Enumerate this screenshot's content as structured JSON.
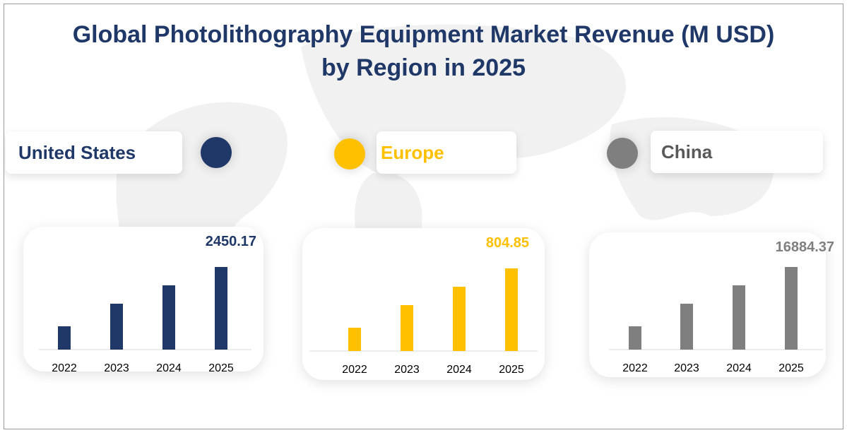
{
  "title_line1": "Global Photolithography Equipment Market Revenue  (M USD)",
  "title_line2": "by Region in 2025",
  "chart_data": [
    {
      "type": "bar",
      "region": "United States",
      "color": "#1f3868",
      "categories": [
        "2022",
        "2023",
        "2024",
        "2025"
      ],
      "values": [
        691,
        1361,
        1906,
        2450.17
      ],
      "label": "2450.17"
    },
    {
      "type": "bar",
      "region": "Europe",
      "color": "#ffc000",
      "categories": [
        "2022",
        "2023",
        "2024",
        "2025"
      ],
      "values": [
        227,
        447,
        626,
        804.85
      ],
      "label": "804.85"
    },
    {
      "type": "bar",
      "region": "China",
      "color": "#7f7f7f",
      "categories": [
        "2022",
        "2023",
        "2024",
        "2025"
      ],
      "values": [
        4762,
        9380,
        13133,
        16884.37
      ],
      "label": "16884.37"
    }
  ]
}
